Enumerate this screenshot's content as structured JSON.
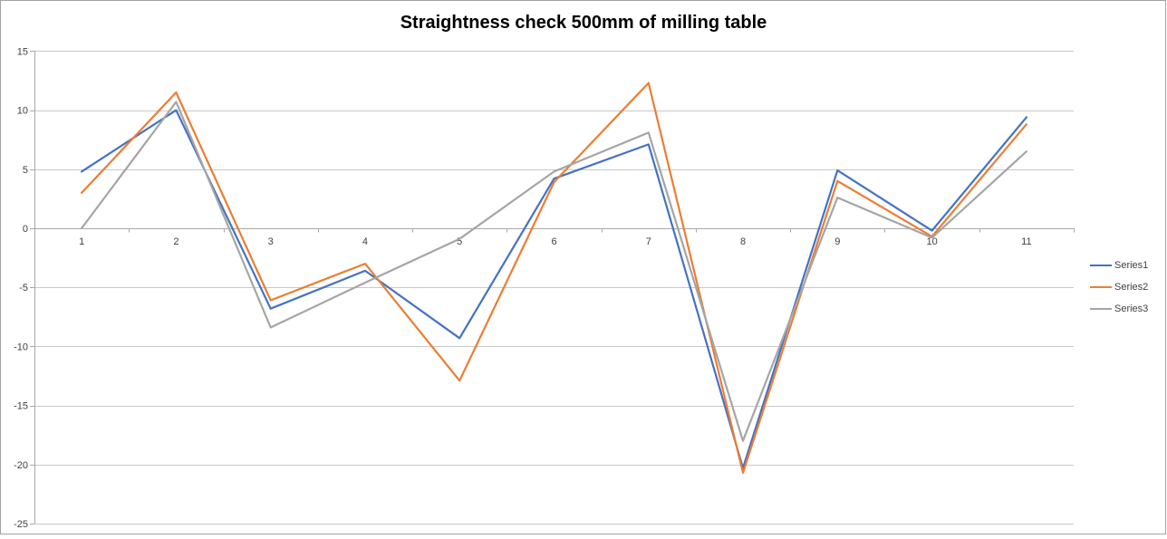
{
  "window": {
    "background": "#ffffff",
    "border_color": "#a3a3a3"
  },
  "chart_data": {
    "type": "line",
    "title": "Straightness check 500mm of milling table",
    "title_color": "#000000",
    "categories": [
      1,
      2,
      3,
      4,
      5,
      6,
      7,
      8,
      9,
      10,
      11
    ],
    "series": [
      {
        "name": "Series1",
        "color": "#4472C4",
        "values": [
          4.8,
          10.0,
          -6.8,
          -3.6,
          -9.3,
          4.2,
          7.1,
          -20.3,
          4.9,
          -0.2,
          9.4
        ]
      },
      {
        "name": "Series2",
        "color": "#ED7D31",
        "values": [
          3.0,
          11.5,
          -6.1,
          -3.0,
          -12.9,
          3.9,
          12.3,
          -20.7,
          4.0,
          -0.7,
          8.8
        ]
      },
      {
        "name": "Series3",
        "color": "#A5A5A5",
        "values": [
          0.0,
          10.7,
          -8.4,
          -4.6,
          -0.9,
          4.8,
          8.1,
          -18.0,
          2.6,
          -0.8,
          6.5
        ]
      }
    ],
    "xlabel": "",
    "ylabel": "",
    "ylim": [
      -25,
      15
    ],
    "y_ticks": [
      15,
      10,
      5,
      0,
      -5,
      -10,
      -15,
      -20,
      -25
    ],
    "grid": "horizontal",
    "gridline_color": "#c9c9c9",
    "axis_color": "#a8a8a8",
    "tick_label_color": "#404040",
    "legend_position": "right"
  }
}
